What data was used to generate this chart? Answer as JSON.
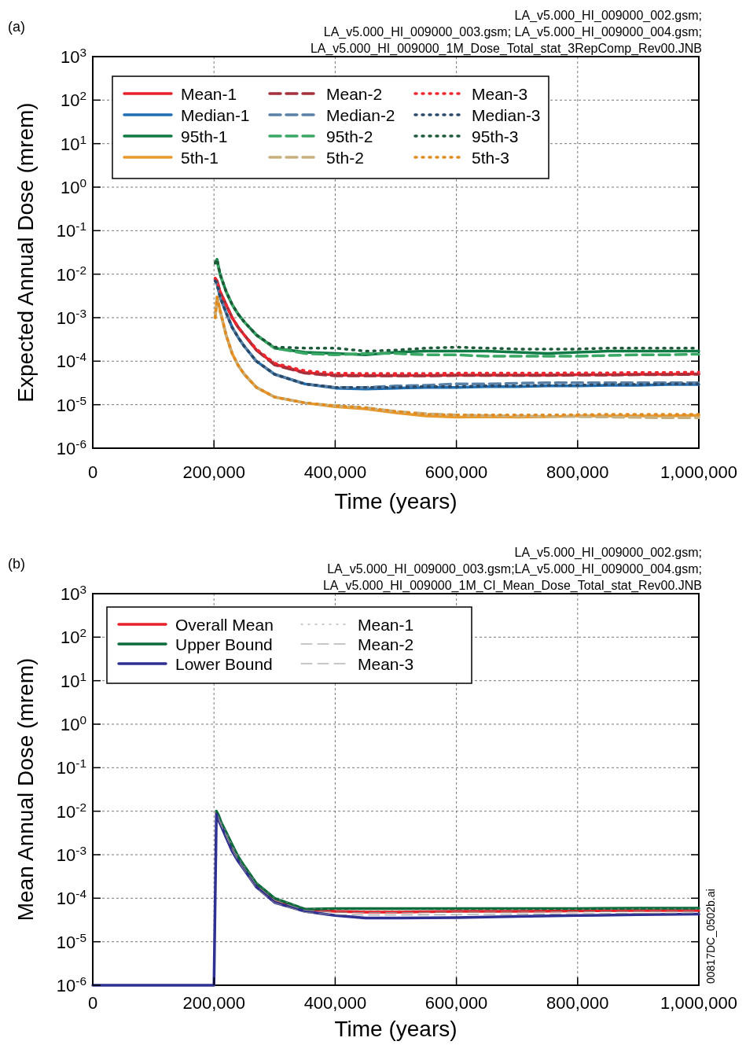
{
  "chart_data": [
    {
      "type": "line",
      "annotations": [
        "(a)",
        "LA_v5.000_HI_009000_002.gsm;",
        "LA_v5.000_HI_009000_003.gsm; LA_v5.000_HI_009000_004.gsm;",
        "LA_v5.000_HI_009000_1M_Dose_Total_stat_3RepComp_Rev00.JNB"
      ],
      "xlabel": "Time (years)",
      "ylabel": "Expected Annual Dose (mrem)",
      "log": "y",
      "grid": true,
      "legend": "top left",
      "xlim": [
        0,
        1000000
      ],
      "ylim": [
        1e-06,
        1000
      ],
      "xticks": [
        0,
        {
          "value": 200000,
          "label": "200,000"
        },
        {
          "value": 400000,
          "label": "400,000"
        },
        {
          "value": 600000,
          "label": "600,000"
        },
        {
          "value": 800000,
          "label": "800,000"
        },
        {
          "value": 1000000,
          "label": "1,000,000"
        }
      ],
      "yticks": [
        {
          "value": 1000,
          "label": "10$^{3}$"
        },
        {
          "value": 100,
          "label": "10$^{2}$"
        },
        {
          "value": 10,
          "label": "10$^{1}$"
        },
        {
          "value": 1,
          "label": "10$^{0}$"
        },
        {
          "value": 0.1,
          "label": "10$^{-1}$"
        },
        {
          "value": 0.01,
          "label": "10$^{-2}$"
        },
        {
          "value": 0.001,
          "label": "10$^{-3}$"
        },
        {
          "value": 0.0001,
          "label": "10$^{-4}$"
        },
        {
          "value": 1e-05,
          "label": "10$^{-5}$"
        },
        {
          "value": 1e-06,
          "label": "10$^{-6}$"
        }
      ],
      "x": [
        202000,
        205000,
        210000,
        220000,
        230000,
        240000,
        250000,
        270000,
        300000,
        350000,
        400000,
        450000,
        500000,
        550000,
        600000,
        650000,
        700000,
        750000,
        800000,
        850000,
        900000,
        950000,
        1000000
      ],
      "series": [
        {
          "name": "Mean-1",
          "color": "#e8202a",
          "line_style": "solid",
          "values": [
            0.008,
            0.007,
            0.004,
            0.002,
            0.001,
            0.0006,
            0.0004,
            0.00018,
            8.5e-05,
            5.5e-05,
            4.8e-05,
            4.7e-05,
            4.7e-05,
            4.7e-05,
            4.8e-05,
            4.8e-05,
            4.8e-05,
            4.8e-05,
            4.9e-05,
            4.9e-05,
            5e-05,
            5e-05,
            5.1e-05
          ]
        },
        {
          "name": "Median-1",
          "color": "#1f6fb5",
          "line_style": "solid",
          "values": [
            0.007,
            0.006,
            0.003,
            0.0013,
            0.0006,
            0.00035,
            0.00022,
            0.0001,
            5e-05,
            3e-05,
            2.4e-05,
            2.3e-05,
            2.4e-05,
            2.5e-05,
            2.5e-05,
            2.6e-05,
            2.6e-05,
            2.7e-05,
            2.7e-05,
            2.8e-05,
            2.8e-05,
            2.9e-05,
            2.9e-05
          ]
        },
        {
          "name": "95th-1",
          "color": "#107a45",
          "line_style": "solid",
          "values": [
            0.018,
            0.022,
            0.01,
            0.004,
            0.002,
            0.0012,
            0.0008,
            0.0004,
            0.0002,
            0.00016,
            0.00015,
            0.00014,
            0.00016,
            0.00017,
            0.00017,
            0.00017,
            0.00016,
            0.00015,
            0.00016,
            0.00017,
            0.00017,
            0.00017,
            0.00017
          ]
        },
        {
          "name": "5th-1",
          "color": "#e8992a",
          "line_style": "solid",
          "values": [
            0.001,
            0.003,
            0.0015,
            0.0004,
            0.00015,
            8e-05,
            5e-05,
            2.5e-05,
            1.5e-05,
            1.1e-05,
            9e-06,
            8e-06,
            6.5e-06,
            5.5e-06,
            5.2e-06,
            5.3e-06,
            5.2e-06,
            5.3e-06,
            5.5e-06,
            5.5e-06,
            5.5e-06,
            5.5e-06,
            5.7e-06
          ]
        },
        {
          "name": "Mean-2",
          "color": "#a3303a",
          "line_style": "dashed",
          "values": [
            0.008,
            0.007,
            0.004,
            0.002,
            0.001,
            0.0006,
            0.0004,
            0.00018,
            8.2e-05,
            5.3e-05,
            4.6e-05,
            4.6e-05,
            4.6e-05,
            4.6e-05,
            4.7e-05,
            4.7e-05,
            4.7e-05,
            4.7e-05,
            4.8e-05,
            4.8e-05,
            4.9e-05,
            4.9e-05,
            5e-05
          ]
        },
        {
          "name": "Median-2",
          "color": "#5a82a8",
          "line_style": "dashed",
          "values": [
            0.007,
            0.006,
            0.003,
            0.0013,
            0.0006,
            0.00035,
            0.00022,
            0.0001,
            5e-05,
            3e-05,
            2.5e-05,
            2.5e-05,
            2.7e-05,
            2.8e-05,
            3e-05,
            3e-05,
            3.1e-05,
            3.2e-05,
            3.2e-05,
            3.2e-05,
            3.2e-05,
            3.2e-05,
            3.2e-05
          ]
        },
        {
          "name": "95th-2",
          "color": "#3aa865",
          "line_style": "dashed",
          "values": [
            0.018,
            0.02,
            0.01,
            0.004,
            0.002,
            0.0012,
            0.0008,
            0.0004,
            0.0002,
            0.00015,
            0.00014,
            0.00015,
            0.00015,
            0.00014,
            0.00014,
            0.00013,
            0.00013,
            0.00013,
            0.00013,
            0.000135,
            0.00014,
            0.00014,
            0.000145
          ]
        },
        {
          "name": "5th-2",
          "color": "#c8b07e",
          "line_style": "dashed",
          "values": [
            0.001,
            0.0028,
            0.0014,
            0.0004,
            0.00015,
            8e-05,
            5e-05,
            2.5e-05,
            1.5e-05,
            1.1e-05,
            9.5e-06,
            8.5e-06,
            7e-06,
            6.2e-06,
            5.8e-06,
            5.6e-06,
            5.5e-06,
            5.4e-06,
            5.3e-06,
            5.2e-06,
            5.1e-06,
            5e-06,
            5e-06
          ]
        },
        {
          "name": "Mean-3",
          "color": "#f0262e",
          "line_style": "dotted",
          "values": [
            0.008,
            0.007,
            0.004,
            0.002,
            0.001,
            0.0006,
            0.0004,
            0.00019,
            9e-05,
            6e-05,
            5.3e-05,
            5.2e-05,
            5.2e-05,
            5.2e-05,
            5.3e-05,
            5.3e-05,
            5.3e-05,
            5.3e-05,
            5.4e-05,
            5.4e-05,
            5.5e-05,
            5.5e-05,
            5.6e-05
          ]
        },
        {
          "name": "Median-3",
          "color": "#2a4a68",
          "line_style": "dotted",
          "values": [
            0.007,
            0.006,
            0.003,
            0.0013,
            0.0006,
            0.00035,
            0.00022,
            0.0001,
            5e-05,
            3e-05,
            2.5e-05,
            2.5e-05,
            2.5e-05,
            2.6e-05,
            2.6e-05,
            2.7e-05,
            2.7e-05,
            2.8e-05,
            2.8e-05,
            2.9e-05,
            2.9e-05,
            3e-05,
            3e-05
          ]
        },
        {
          "name": "95th-3",
          "color": "#1e5a3a",
          "line_style": "dotted",
          "values": [
            0.018,
            0.022,
            0.01,
            0.004,
            0.002,
            0.0012,
            0.0008,
            0.0004,
            0.00021,
            0.0002,
            0.0002,
            0.00017,
            0.00018,
            0.0002,
            0.00021,
            0.0002,
            0.00019,
            0.00019,
            0.00019,
            0.0002,
            0.0002,
            0.0002,
            0.0002
          ]
        },
        {
          "name": "5th-3",
          "color": "#e08a20",
          "line_style": "dotted",
          "values": [
            0.001,
            0.003,
            0.0015,
            0.0004,
            0.00015,
            8e-05,
            5e-05,
            2.5e-05,
            1.5e-05,
            1.1e-05,
            9.5e-06,
            8.5e-06,
            7e-06,
            6e-06,
            5.8e-06,
            5.8e-06,
            5.8e-06,
            5.8e-06,
            5.9e-06,
            6e-06,
            6e-06,
            6e-06,
            6e-06
          ]
        }
      ]
    },
    {
      "type": "line",
      "annotations": [
        "(b)",
        "LA_v5.000_HI_009000_002.gsm;",
        "LA_v5.000_HI_009000_003.gsm;LA_v5.000_HI_009000_004.gsm;",
        "LA_v5.000_HI_009000_1M_CI_Mean_Dose_Total_stat_Rev00.JNB",
        "00817DC_0502b.ai"
      ],
      "xlabel": "Time (years)",
      "ylabel": "Mean Annual Dose (mrem)",
      "log": "y",
      "grid": true,
      "legend": "top left",
      "xlim": [
        0,
        1000000
      ],
      "ylim": [
        1e-06,
        1000
      ],
      "xticks": [
        0,
        {
          "value": 200000,
          "label": "200,000"
        },
        {
          "value": 400000,
          "label": "400,000"
        },
        {
          "value": 600000,
          "label": "600,000"
        },
        {
          "value": 800000,
          "label": "800,000"
        },
        {
          "value": 1000000,
          "label": "1,000,000"
        }
      ],
      "yticks": [
        {
          "value": 1000,
          "label": "10$^{3}$"
        },
        {
          "value": 100,
          "label": "10$^{2}$"
        },
        {
          "value": 10,
          "label": "10$^{1}$"
        },
        {
          "value": 1,
          "label": "10$^{0}$"
        },
        {
          "value": 0.1,
          "label": "10$^{-1}$"
        },
        {
          "value": 0.01,
          "label": "10$^{-2}$"
        },
        {
          "value": 0.001,
          "label": "10$^{-3}$"
        },
        {
          "value": 0.0001,
          "label": "10$^{-4}$"
        },
        {
          "value": 1e-05,
          "label": "10$^{-5}$"
        },
        {
          "value": 1e-06,
          "label": "10$^{-6}$"
        }
      ],
      "x": [
        0,
        200000,
        204000,
        208000,
        212000,
        220000,
        230000,
        240000,
        250000,
        270000,
        300000,
        350000,
        400000,
        450000,
        500000,
        600000,
        700000,
        800000,
        900000,
        1000000
      ],
      "series": [
        {
          "name": "Overall Mean",
          "color": "#e8202a",
          "line_style": "solid",
          "values": [
            null,
            null,
            0.009,
            0.007,
            0.005,
            0.003,
            0.0015,
            0.0008,
            0.0005,
            0.0002,
            9e-05,
            5.5e-05,
            5e-05,
            4.8e-05,
            4.8e-05,
            5e-05,
            5e-05,
            5.1e-05,
            5.2e-05,
            5.2e-05
          ]
        },
        {
          "name": "Upper Bound",
          "color": "#0a6b3a",
          "line_style": "solid",
          "values": [
            null,
            null,
            0.01,
            0.0078,
            0.0055,
            0.0033,
            0.0017,
            0.0009,
            0.00055,
            0.00022,
            0.0001,
            5.6e-05,
            5.8e-05,
            5.8e-05,
            5.8e-05,
            5.8e-05,
            5.8e-05,
            5.8e-05,
            5.9e-05,
            5.9e-05
          ]
        },
        {
          "name": "Lower Bound",
          "color": "#2e3192",
          "line_style": "solid",
          "values": [
            1e-06,
            1e-06,
            0.0085,
            0.006,
            0.0045,
            0.0025,
            0.0012,
            0.0007,
            0.00045,
            0.00018,
            8e-05,
            5e-05,
            4e-05,
            3.5e-05,
            3.5e-05,
            3.6e-05,
            3.8e-05,
            4e-05,
            4.2e-05,
            4.3e-05
          ]
        },
        {
          "name": "Mean-1",
          "color": "#909090",
          "line_style": "dotted",
          "x": [
            207000,
            208000,
            212000,
            220000,
            230000,
            240000,
            250000,
            270000,
            300000,
            350000,
            400000,
            450000,
            500000,
            600000,
            700000,
            800000,
            900000,
            1000000
          ],
          "values": [
            0.0078,
            0.0075,
            0.0055,
            0.0034,
            0.0017,
            0.0009,
            0.00056,
            0.00023,
            0.0001,
            6e-05,
            5.5e-05,
            5.4e-05,
            5.4e-05,
            5.5e-05,
            5.5e-05,
            5.6e-05,
            5.7e-05,
            5.7e-05
          ]
        },
        {
          "name": "Mean-2",
          "color": "#909090",
          "line_style": "dashed",
          "x": [
            207000,
            208000,
            212000,
            220000,
            230000,
            240000,
            250000,
            270000,
            300000,
            350000,
            400000,
            450000,
            500000,
            600000,
            700000,
            800000,
            900000,
            1000000
          ],
          "values": [
            0.0072,
            0.007,
            0.005,
            0.003,
            0.0015,
            0.0008,
            0.0005,
            0.0002,
            9e-05,
            5.3e-05,
            4.8e-05,
            4.7e-05,
            4.7e-05,
            4.8e-05,
            4.8e-05,
            4.9e-05,
            5e-05,
            5e-05
          ]
        },
        {
          "name": "Mean-3",
          "color": "#909090",
          "line_style": "dashed",
          "x": [
            207000,
            208000,
            212000,
            220000,
            230000,
            240000,
            250000,
            270000,
            300000,
            350000,
            400000,
            450000,
            500000,
            600000,
            700000,
            800000,
            900000,
            1000000
          ],
          "values": [
            0.0066,
            0.0064,
            0.0046,
            0.0027,
            0.0013,
            0.0007,
            0.00044,
            0.00017,
            7.8e-05,
            4.7e-05,
            4.2e-05,
            4.1e-05,
            4.1e-05,
            4.2e-05,
            4.3e-05,
            4.4e-05,
            4.5e-05,
            4.6e-05
          ]
        }
      ]
    }
  ]
}
